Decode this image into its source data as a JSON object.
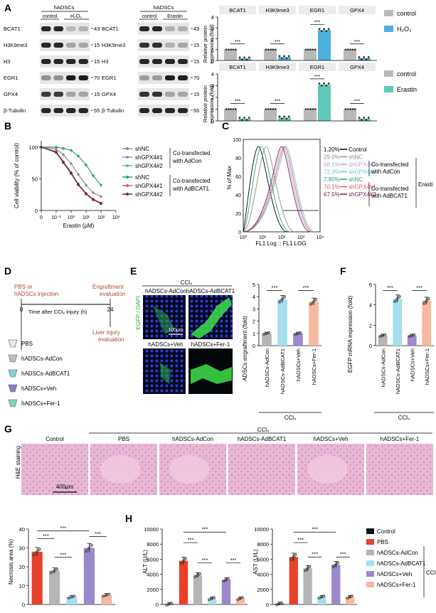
{
  "panels": {
    "A": {
      "letter": "A",
      "blot1": {
        "cell_label": "hADSCs",
        "groups": [
          "control",
          "H₂O₂"
        ],
        "rows": [
          "BCAT1",
          "H3K9me3",
          "H3",
          "EGR1",
          "GPX4",
          "β-Tubulin"
        ],
        "mw": [
          "43",
          "15",
          "15",
          "70",
          "15",
          "55"
        ]
      },
      "blot2": {
        "cell_label": "hADSCs",
        "groups": [
          "control",
          "Erastin"
        ],
        "rows": [
          "BCAT1",
          "H3K9me3",
          "H3",
          "EGR1",
          "GPX4",
          "β-Tubulin"
        ],
        "mw": [
          "43",
          "15",
          "15",
          "70",
          "15",
          "55"
        ]
      },
      "ylabel": [
        "Relative protein",
        "expression (fold)"
      ],
      "targets": [
        "BCAT1",
        "H3K9me3",
        "EGR1",
        "GPX4"
      ],
      "legend_top": [
        "control",
        "H₂O₂"
      ],
      "legend_bottom": [
        "control",
        "Erastin"
      ],
      "colors": {
        "control": "#b9b9b9",
        "h2o2": "#4bb0de",
        "erastin": "#5ec9b7"
      }
    },
    "B": {
      "letter": "B",
      "legend": [
        "shNC",
        "shGPX4#1",
        "shGPX4#2",
        "shNC",
        "shGPX4#1",
        "shGPX4#2"
      ],
      "group_labels": [
        "Co-transfected",
        "with AdCon",
        "Co-transfected",
        "with AdBCAT1"
      ],
      "colors": [
        "#8c8c8c",
        "#9d8fd0",
        "#5cbfa8",
        "#2f9c84",
        "#e25553",
        "#6b2252"
      ]
    },
    "C": {
      "letter": "C",
      "ylabel": "% of Max",
      "xlabel": "FL1 Log :: FL1 LOG",
      "yticks": [
        "0",
        "20",
        "40",
        "60",
        "80",
        "100"
      ],
      "xticks": [
        "10⁰",
        "10¹",
        "10²",
        "10³",
        "10⁴"
      ],
      "rows": [
        {
          "pct": "1.20%",
          "label": "Control",
          "color": "#000000"
        },
        {
          "pct": "29.0%",
          "label": "shNC",
          "color": "#8c8c8c"
        },
        {
          "pct": "68.1%",
          "label": "shGPX4#1",
          "color": "#b0a6da"
        },
        {
          "pct": "72.3%",
          "label": "shGPX4#2",
          "color": "#6cc6d2"
        },
        {
          "pct": "7.80%",
          "label": "shNC",
          "color": "#2f9c84"
        },
        {
          "pct": "70.1%",
          "label": "shGPX4#1",
          "color": "#e25553"
        },
        {
          "pct": "67.5%",
          "label": "shGPX4#2",
          "color": "#6b2252"
        }
      ],
      "group_labels": [
        "Co-transfected",
        "with AdCon",
        "Co-transfected",
        "with AdBCAT1"
      ],
      "side_label": "Erasti"
    },
    "D": {
      "letter": "D",
      "top_left": [
        "PBS or",
        "hADSCs injection"
      ],
      "top_right": [
        "Engraftment",
        "evaluation"
      ],
      "start": "0",
      "end": "24",
      "axis_label": "Time after CCl₄ injury (h)",
      "liver": [
        "Liver injury",
        "evaluation"
      ],
      "groups": [
        "PBS",
        "hADSCs-AdCon",
        "hADSCs-AdBCAT1",
        "hADSCs+Veh",
        "hADSCs+Fer-1"
      ]
    },
    "E": {
      "letter": "E",
      "header": "CCl₄",
      "image_titles": [
        "hADSCs-AdCon",
        "hADSCs-AdBCAT1",
        "hADSCs+Veh",
        "hADSCs+Fer-1"
      ],
      "side_label": "EGFP / DAPI",
      "scale_bar": "100μm",
      "chart_ylabel": "ADSCs engraftment (fold)",
      "chart_bottom": "CCl₄"
    },
    "F": {
      "letter": "F",
      "chart_ylabel": "EGFP mRNA expression (fold)",
      "chart_bottom": "CCl₄"
    },
    "G": {
      "letter": "G",
      "header": "CCl₄",
      "titles": [
        "Control",
        "PBS",
        "hADSCs-AdCon",
        "hADSCs-AdBCAT1",
        "hADSCs+Veh",
        "hADSCs+Fer-1"
      ],
      "side_label": "H&E staining",
      "scale_bar": "400μm",
      "chart_ylabel": "Necrosis area (%)"
    },
    "H": {
      "letter": "H",
      "alt_ylabel": "ALT (U/L)",
      "ast_ylabel": "AST (U/L)",
      "legend": [
        "Control",
        "PBS",
        "hADSCs-AdCon",
        "hADSCs-AdBCAT1",
        "hADSCs+Veh",
        "hADSCs+Fer-1"
      ],
      "legend_colors": [
        "#111111",
        "#e8402a",
        "#b5b5b5",
        "#a5dff0",
        "#9c88cc",
        "#f8b79f"
      ],
      "ccl4": "CCl₄"
    }
  },
  "significance": "***",
  "chart_data": [
    {
      "id": "A-top",
      "type": "bar",
      "categories": [
        "BCAT1",
        "H3K9me3",
        "EGR1",
        "GPX4"
      ],
      "series": [
        {
          "name": "control",
          "values": [
            1,
            1,
            1,
            1
          ]
        },
        {
          "name": "H₂O₂",
          "values": [
            0.18,
            0.3,
            2.8,
            0.2
          ]
        }
      ],
      "ylabel": "Relative protein expression (fold)"
    },
    {
      "id": "A-bottom",
      "type": "bar",
      "categories": [
        "BCAT1",
        "H3K9me3",
        "EGR1",
        "GPX4"
      ],
      "series": [
        {
          "name": "control",
          "values": [
            1,
            1,
            1,
            1
          ]
        },
        {
          "name": "Erastin",
          "values": [
            0.18,
            0.28,
            3.1,
            0.18
          ]
        }
      ],
      "ylabel": "Relative protein expression (fold)"
    },
    {
      "id": "B",
      "type": "line",
      "xlabel": "Erastin (μM)",
      "ylabel": "Cell viability (% of control)",
      "xscale": "log",
      "xticks": [
        "0",
        "10⁻¹",
        "10⁰",
        "10¹",
        "10²",
        "10³"
      ],
      "yticks": [
        0,
        50,
        100
      ],
      "x": [
        0,
        0.1,
        0.3,
        1,
        3,
        10,
        30,
        100
      ],
      "series": [
        {
          "name": "shNC",
          "values": [
            100,
            97,
            88,
            74,
            57,
            40,
            28,
            22
          ]
        },
        {
          "name": "shGPX4#1",
          "values": [
            100,
            92,
            77,
            60,
            42,
            27,
            18,
            12
          ]
        },
        {
          "name": "shGPX4#2",
          "values": [
            100,
            91,
            75,
            58,
            40,
            26,
            17,
            11
          ]
        },
        {
          "name": "shNC",
          "values": [
            100,
            100,
            98,
            95,
            86,
            72,
            55,
            40
          ]
        },
        {
          "name": "shGPX4#1",
          "values": [
            100,
            93,
            77,
            60,
            41,
            27,
            18,
            12
          ]
        },
        {
          "name": "shGPX4#2",
          "values": [
            100,
            92,
            76,
            59,
            41,
            26,
            17,
            11
          ]
        }
      ]
    },
    {
      "id": "E",
      "type": "bar",
      "categories": [
        "hADSCs-AdCon",
        "hADSCs-AdBCAT1",
        "hADSCs+Veh",
        "hADSCs+Fer-1"
      ],
      "values": [
        1.0,
        3.8,
        1.0,
        3.6
      ],
      "colors": [
        "#b5b5b5",
        "#a5dff0",
        "#9c88cc",
        "#f8b79f"
      ],
      "ylim": [
        0,
        5
      ],
      "yticks": [
        0,
        1,
        2,
        3,
        4,
        5
      ],
      "ylabel": "ADSCs engraftment (fold)"
    },
    {
      "id": "F",
      "type": "bar",
      "categories": [
        "hADSCs-AdCon",
        "hADSCs-AdBCAT1",
        "hADSCs+Veh",
        "hADSCs+Fer-1"
      ],
      "values": [
        1.0,
        4.6,
        1.0,
        4.4
      ],
      "colors": [
        "#b5b5b5",
        "#a5dff0",
        "#9c88cc",
        "#f8b79f"
      ],
      "ylim": [
        0,
        6
      ],
      "yticks": [
        0,
        2,
        4,
        6
      ],
      "ylabel": "EGFP mRNA expression (fold)"
    },
    {
      "id": "G",
      "type": "bar",
      "categories": [
        "PBS",
        "hADSCs-AdCon",
        "hADSCs-AdBCAT1",
        "hADSCs+Veh",
        "hADSCs+Fer-1"
      ],
      "values": [
        28,
        18,
        4,
        30,
        5
      ],
      "colors": [
        "#e8402a",
        "#b5b5b5",
        "#a5dff0",
        "#9c88cc",
        "#f8b79f"
      ],
      "ylim": [
        0,
        40
      ],
      "yticks": [
        0,
        10,
        20,
        30,
        40
      ],
      "ylabel": "Necrosis area (%)"
    },
    {
      "id": "H-ALT",
      "type": "bar",
      "categories": [
        "Control",
        "PBS",
        "hADSCs-AdCon",
        "hADSCs-AdBCAT1",
        "hADSCs+Veh",
        "hADSCs+Fer-1"
      ],
      "values": [
        70,
        5800,
        3900,
        800,
        3300,
        800
      ],
      "colors": [
        "#111111",
        "#e8402a",
        "#b5b5b5",
        "#a5dff0",
        "#9c88cc",
        "#f8b79f"
      ],
      "ylim": [
        0,
        10000
      ],
      "yticks": [
        0,
        2000,
        4000,
        6000,
        8000,
        10000
      ],
      "ylabel": "ALT (U/L)"
    },
    {
      "id": "H-AST",
      "type": "bar",
      "categories": [
        "Control",
        "PBS",
        "hADSCs-AdCon",
        "hADSCs-AdBCAT1",
        "hADSCs+Veh",
        "hADSCs+Fer-1"
      ],
      "values": [
        100,
        6300,
        4800,
        1000,
        5300,
        1000
      ],
      "colors": [
        "#111111",
        "#e8402a",
        "#b5b5b5",
        "#a5dff0",
        "#9c88cc",
        "#f8b79f"
      ],
      "ylim": [
        0,
        10000
      ],
      "yticks": [
        0,
        2000,
        4000,
        6000,
        8000,
        10000
      ],
      "ylabel": "AST (U/L)"
    }
  ]
}
